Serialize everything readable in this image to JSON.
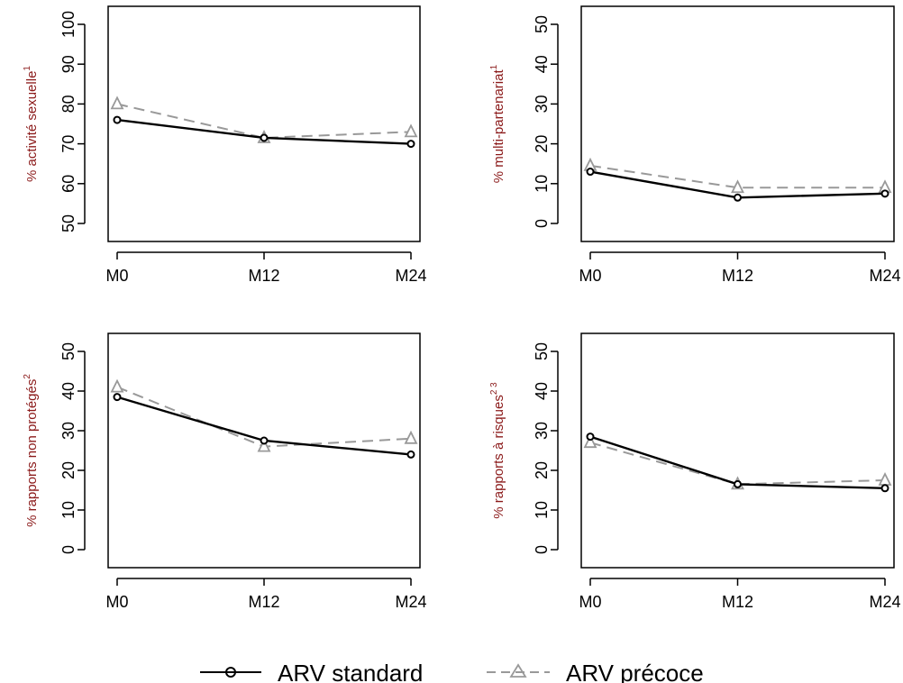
{
  "colors": {
    "standard_line": "#000000",
    "precoce_line": "#999999",
    "axis_label": "#8b1a1a"
  },
  "legend": {
    "position": "bottom-center",
    "items": [
      {
        "label": "ARV standard",
        "color": "#000000",
        "line_style": "solid",
        "marker": "circle-open-icon"
      },
      {
        "label": "ARV précoce",
        "color": "#999999",
        "line_style": "dashed",
        "marker": "triangle-open-icon"
      }
    ]
  },
  "chart_data": [
    {
      "type": "line",
      "title": "",
      "xlabel": "",
      "ylabel": "% activité sexuelle",
      "ylabel_superscript": "1",
      "categories": [
        "M0",
        "M12",
        "M24"
      ],
      "ylim": [
        50,
        100
      ],
      "yticks": [
        "50",
        "60",
        "70",
        "80",
        "90",
        "100"
      ],
      "series": [
        {
          "name": "ARV standard",
          "values": [
            76,
            71.5,
            70
          ]
        },
        {
          "name": "ARV précoce",
          "values": [
            80,
            71.5,
            73
          ]
        }
      ]
    },
    {
      "type": "line",
      "title": "",
      "xlabel": "",
      "ylabel": "% multi-partenariat",
      "ylabel_superscript": "1",
      "categories": [
        "M0",
        "M12",
        "M24"
      ],
      "ylim": [
        0,
        50
      ],
      "yticks": [
        "0",
        "10",
        "20",
        "30",
        "40",
        "50"
      ],
      "series": [
        {
          "name": "ARV standard",
          "values": [
            13,
            6.5,
            7.5
          ]
        },
        {
          "name": "ARV précoce",
          "values": [
            14.5,
            9,
            9
          ]
        }
      ]
    },
    {
      "type": "line",
      "title": "",
      "xlabel": "",
      "ylabel": "% rapports non protégés",
      "ylabel_superscript": "2",
      "categories": [
        "M0",
        "M12",
        "M24"
      ],
      "ylim": [
        0,
        50
      ],
      "yticks": [
        "0",
        "10",
        "20",
        "30",
        "40",
        "50"
      ],
      "series": [
        {
          "name": "ARV standard",
          "values": [
            38.5,
            27.5,
            24
          ]
        },
        {
          "name": "ARV précoce",
          "values": [
            41,
            26,
            28
          ]
        }
      ]
    },
    {
      "type": "line",
      "title": "",
      "xlabel": "",
      "ylabel": "% rapports à risques",
      "ylabel_superscript": "2 3",
      "categories": [
        "M0",
        "M12",
        "M24"
      ],
      "ylim": [
        0,
        50
      ],
      "yticks": [
        "0",
        "10",
        "20",
        "30",
        "40",
        "50"
      ],
      "series": [
        {
          "name": "ARV standard",
          "values": [
            28.5,
            16.5,
            15.5
          ]
        },
        {
          "name": "ARV précoce",
          "values": [
            27,
            16.5,
            17.5
          ]
        }
      ]
    }
  ]
}
